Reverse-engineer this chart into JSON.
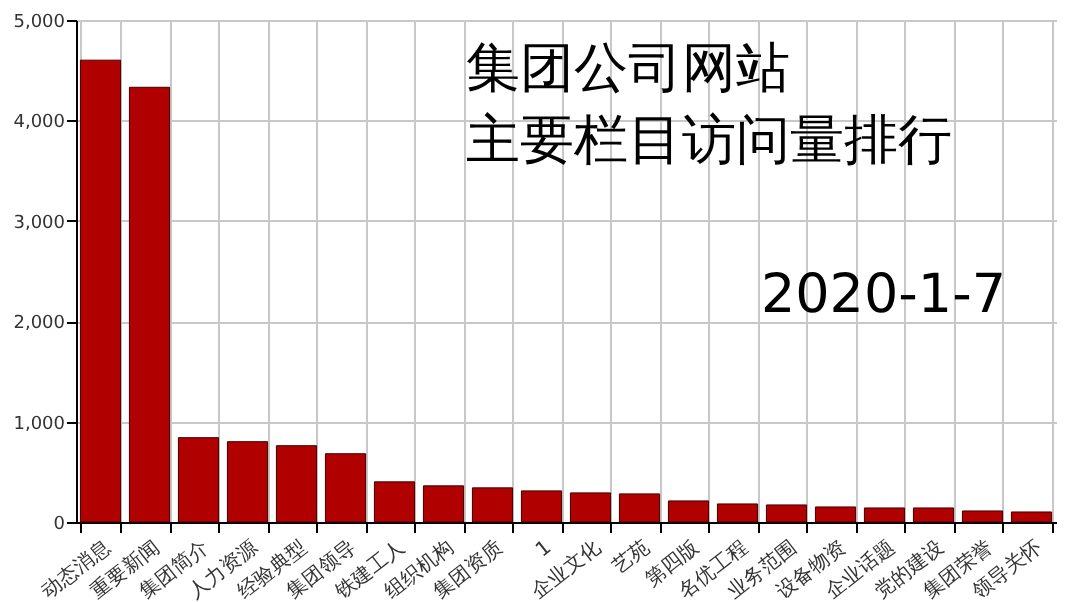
{
  "chart_data": {
    "type": "bar",
    "title": "集团公司网站",
    "subtitle": "主要栏目访问量排行",
    "annotations": [
      "2020-1-7"
    ],
    "categories": [
      "动态消息",
      "重要新闻",
      "集团简介",
      "人力资源",
      "经验典型",
      "集团领导",
      "铁建工人",
      "组织机构",
      "集团资质",
      "1",
      "企业文化",
      "艺苑",
      "第四版",
      "名优工程",
      "业务范围",
      "设备物资",
      "企业话题",
      "党的建设",
      "集团荣誉",
      "领导关怀"
    ],
    "values": [
      4600,
      4330,
      840,
      800,
      760,
      680,
      400,
      360,
      340,
      310,
      290,
      280,
      210,
      180,
      170,
      150,
      140,
      140,
      110,
      100
    ],
    "color": "#b00000",
    "ylim": [
      0,
      5000
    ],
    "yticks": [
      {
        "value": 0,
        "label": "0"
      },
      {
        "value": 1000,
        "label": "1,000"
      },
      {
        "value": 2000,
        "label": "2,000"
      },
      {
        "value": 3000,
        "label": "3,000"
      },
      {
        "value": 4000,
        "label": "4,000"
      },
      {
        "value": 5000,
        "label": "5,000"
      }
    ],
    "grid": true
  }
}
